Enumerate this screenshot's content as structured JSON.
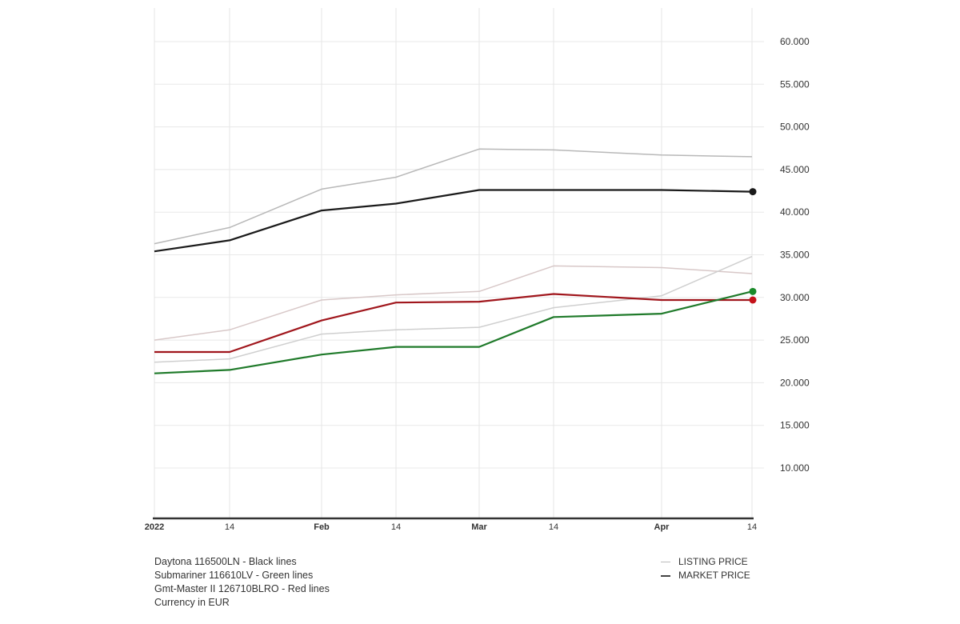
{
  "chart_data": {
    "type": "line",
    "title": "",
    "xlabel": "",
    "ylabel": "",
    "x_tick_labels": [
      "2022",
      "14",
      "Feb",
      "14",
      "Mar",
      "14",
      "Apr",
      "14"
    ],
    "x": [
      "2022-01-01",
      "2022-01-14",
      "2022-02-01",
      "2022-02-14",
      "2022-03-01",
      "2022-03-14",
      "2022-04-01",
      "2022-04-14"
    ],
    "y_ticks": [
      10000,
      15000,
      20000,
      25000,
      30000,
      35000,
      40000,
      45000,
      50000,
      55000,
      60000
    ],
    "y_tick_labels": [
      "10.000",
      "15.000",
      "20.000",
      "25.000",
      "30.000",
      "35.000",
      "40.000",
      "45.000",
      "50.000",
      "55.000",
      "60.000"
    ],
    "ylim": [
      4000,
      61000
    ],
    "grid": true,
    "y_axis_position": "right",
    "series": [
      {
        "name": "Daytona 116500LN Listing Price",
        "kind": "listing",
        "color": "#b8b8b8",
        "values": [
          36300,
          38200,
          42700,
          44100,
          47400,
          47300,
          46700,
          46500
        ]
      },
      {
        "name": "Gmt-Master II 126710BLRO Listing Price",
        "kind": "listing",
        "color": "#d8c8c8",
        "values": [
          25000,
          26200,
          29700,
          30300,
          30700,
          33700,
          33500,
          32800
        ]
      },
      {
        "name": "Submariner 116610LV Listing Price",
        "kind": "listing",
        "color": "#cfcfcf",
        "values": [
          22400,
          22800,
          25700,
          26200,
          26500,
          28800,
          30200,
          34800
        ]
      },
      {
        "name": "Daytona 116500LN Market Price",
        "kind": "market",
        "color": "#1a1a1a",
        "values": [
          35400,
          36700,
          40200,
          41000,
          42600,
          42600,
          42600,
          42400
        ]
      },
      {
        "name": "Gmt-Master II 126710BLRO Market Price",
        "kind": "market",
        "color": "#a0161c",
        "dot": "#c4121a",
        "values": [
          23600,
          23600,
          27300,
          29400,
          29500,
          30400,
          29700,
          29700
        ]
      },
      {
        "name": "Submariner 116610LV Market Price",
        "kind": "market",
        "color": "#1f7a2a",
        "dot": "#1a8a2a",
        "values": [
          21100,
          21500,
          23300,
          24200,
          24200,
          27700,
          28100,
          30700
        ]
      }
    ],
    "legend": {
      "placement": "bottom-right",
      "entries": [
        "LISTING PRICE",
        "MARKET PRICE"
      ]
    },
    "notes": [
      "Daytona 116500LN - Black lines",
      "Submariner 116610LV - Green lines",
      "Gmt-Master II 126710BLRO - Red lines",
      "Currency in EUR"
    ]
  }
}
